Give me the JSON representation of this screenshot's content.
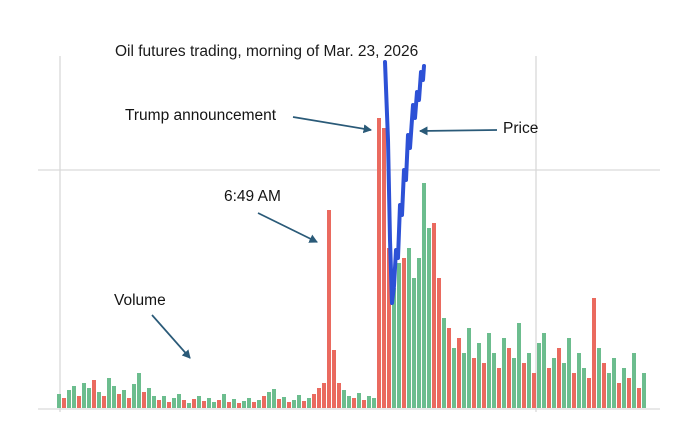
{
  "colors": {
    "volume_up": "#6cbd8e",
    "volume_down": "#ea6a5f",
    "price_line": "#2d51d6",
    "annotation_arrow": "#2a5a78",
    "gridline": "#d9d9d9",
    "text": "#1a1a1a",
    "background": "#ffffff"
  },
  "chart_data": {
    "type": "composite",
    "title": "Oil futures trading, morning of Mar. 23, 2026",
    "x_axis": {
      "label": "",
      "tick_labels": []
    },
    "y_axis": {
      "label": "",
      "tick_labels": []
    },
    "grid": "sparse (one horizontal gridline, two vertical gridlines, bottom axis line)",
    "legend": "none (labels via arrow annotations)",
    "annotations": {
      "trump": {
        "label": "Trump announcement",
        "label_x": 125,
        "label_y": 107,
        "arrow": [
          293,
          117,
          371,
          130
        ]
      },
      "price": {
        "label": "Price",
        "label_x": 503,
        "label_y": 120,
        "arrow": [
          497,
          130,
          420,
          131
        ]
      },
      "time": {
        "label": "6:49 AM",
        "label_x": 224,
        "label_y": 188,
        "arrow": [
          258,
          213,
          317,
          242
        ]
      },
      "volume": {
        "label": "Volume",
        "label_x": 114,
        "label_y": 292,
        "arrow": [
          152,
          315,
          190,
          358
        ]
      }
    },
    "series": [
      {
        "name": "Volume",
        "type": "bar",
        "unit": "relative volume (axis unlabeled, values estimated from pixels)",
        "bars": [
          [
            14,
            "g"
          ],
          [
            10,
            "r"
          ],
          [
            18,
            "g"
          ],
          [
            22,
            "g"
          ],
          [
            12,
            "r"
          ],
          [
            25,
            "g"
          ],
          [
            20,
            "g"
          ],
          [
            28,
            "r"
          ],
          [
            16,
            "g"
          ],
          [
            12,
            "r"
          ],
          [
            30,
            "g"
          ],
          [
            22,
            "g"
          ],
          [
            14,
            "r"
          ],
          [
            18,
            "g"
          ],
          [
            10,
            "r"
          ],
          [
            24,
            "g"
          ],
          [
            35,
            "g"
          ],
          [
            16,
            "r"
          ],
          [
            20,
            "g"
          ],
          [
            12,
            "g"
          ],
          [
            8,
            "r"
          ],
          [
            12,
            "g"
          ],
          [
            6,
            "r"
          ],
          [
            10,
            "g"
          ],
          [
            14,
            "g"
          ],
          [
            8,
            "r"
          ],
          [
            5,
            "g"
          ],
          [
            9,
            "r"
          ],
          [
            12,
            "g"
          ],
          [
            7,
            "r"
          ],
          [
            10,
            "g"
          ],
          [
            6,
            "g"
          ],
          [
            8,
            "r"
          ],
          [
            14,
            "g"
          ],
          [
            6,
            "r"
          ],
          [
            9,
            "g"
          ],
          [
            5,
            "r"
          ],
          [
            7,
            "g"
          ],
          [
            10,
            "g"
          ],
          [
            6,
            "r"
          ],
          [
            8,
            "g"
          ],
          [
            12,
            "r"
          ],
          [
            16,
            "g"
          ],
          [
            19,
            "g"
          ],
          [
            9,
            "r"
          ],
          [
            11,
            "g"
          ],
          [
            6,
            "r"
          ],
          [
            8,
            "g"
          ],
          [
            13,
            "g"
          ],
          [
            7,
            "r"
          ],
          [
            10,
            "g"
          ],
          [
            14,
            "r"
          ],
          [
            20,
            "r"
          ],
          [
            25,
            "r"
          ],
          [
            198,
            "r"
          ],
          [
            58,
            "r"
          ],
          [
            25,
            "r"
          ],
          [
            18,
            "g"
          ],
          [
            12,
            "g"
          ],
          [
            10,
            "r"
          ],
          [
            15,
            "g"
          ],
          [
            8,
            "r"
          ],
          [
            12,
            "g"
          ],
          [
            10,
            "g"
          ],
          [
            290,
            "r"
          ],
          [
            280,
            "r"
          ],
          [
            160,
            "r"
          ],
          [
            120,
            "g"
          ],
          [
            145,
            "g"
          ],
          [
            150,
            "r"
          ],
          [
            160,
            "g"
          ],
          [
            130,
            "g"
          ],
          [
            150,
            "g"
          ],
          [
            225,
            "g"
          ],
          [
            180,
            "g"
          ],
          [
            185,
            "r"
          ],
          [
            130,
            "r"
          ],
          [
            90,
            "g"
          ],
          [
            80,
            "r"
          ],
          [
            60,
            "g"
          ],
          [
            70,
            "r"
          ],
          [
            55,
            "g"
          ],
          [
            80,
            "g"
          ],
          [
            50,
            "r"
          ],
          [
            65,
            "g"
          ],
          [
            45,
            "r"
          ],
          [
            75,
            "g"
          ],
          [
            55,
            "g"
          ],
          [
            40,
            "r"
          ],
          [
            70,
            "g"
          ],
          [
            60,
            "r"
          ],
          [
            50,
            "g"
          ],
          [
            85,
            "g"
          ],
          [
            45,
            "r"
          ],
          [
            55,
            "g"
          ],
          [
            35,
            "r"
          ],
          [
            65,
            "g"
          ],
          [
            75,
            "g"
          ],
          [
            40,
            "r"
          ],
          [
            50,
            "g"
          ],
          [
            60,
            "r"
          ],
          [
            45,
            "g"
          ],
          [
            70,
            "g"
          ],
          [
            35,
            "r"
          ],
          [
            55,
            "g"
          ],
          [
            40,
            "g"
          ],
          [
            30,
            "r"
          ],
          [
            110,
            "r"
          ],
          [
            60,
            "g"
          ],
          [
            45,
            "r"
          ],
          [
            35,
            "g"
          ],
          [
            50,
            "g"
          ],
          [
            25,
            "r"
          ],
          [
            40,
            "g"
          ],
          [
            30,
            "r"
          ],
          [
            55,
            "g"
          ],
          [
            20,
            "r"
          ],
          [
            35,
            "g"
          ]
        ]
      },
      {
        "name": "Price",
        "type": "line",
        "unit": "price (axis unlabeled); sharp crash and rebound at announcement",
        "points": [
          [
            385,
            62
          ],
          [
            388,
            140
          ],
          [
            390,
            240
          ],
          [
            392,
            303
          ],
          [
            394,
            286
          ],
          [
            396,
            250
          ],
          [
            398,
            258
          ],
          [
            400,
            205
          ],
          [
            402,
            215
          ],
          [
            404,
            170
          ],
          [
            406,
            180
          ],
          [
            408,
            135
          ],
          [
            410,
            148
          ],
          [
            413,
            105
          ],
          [
            415,
            118
          ],
          [
            417,
            92
          ],
          [
            419,
            100
          ],
          [
            421,
            72
          ],
          [
            423,
            80
          ],
          [
            424,
            66
          ]
        ]
      }
    ]
  }
}
